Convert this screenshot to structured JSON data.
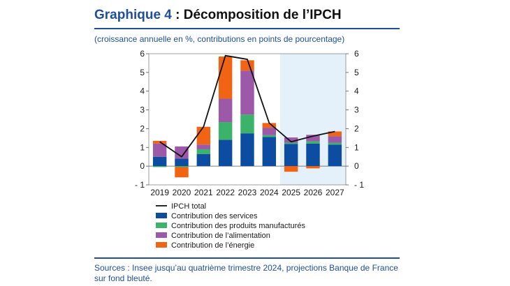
{
  "header": {
    "title_number": "Graphique 4",
    "title_text": " : Décomposition de l’IPCH",
    "subtitle": "(croissance annuelle en %, contributions en points de pourcentage)"
  },
  "footer": {
    "sources": "Sources : Insee jusqu’au quatrième trimestre 2024, projections Banque de France sur fond bleuté."
  },
  "colors": {
    "services": "#0c4da2",
    "manufactures": "#3cb36b",
    "alimentation": "#9b59a7",
    "energie": "#f06414",
    "line": "#111111",
    "projection_bg": "#e4f0fa",
    "accent": "#1f4e9c"
  },
  "chart_data": {
    "type": "bar",
    "stacked": true,
    "categories": [
      "2019",
      "2020",
      "2021",
      "2022",
      "2023",
      "2024",
      "2025",
      "2026",
      "2027"
    ],
    "projection_from": "2025",
    "ylim": [
      -1,
      6
    ],
    "yticks": [
      "6",
      "5",
      "4",
      "3",
      "2",
      "1",
      "0",
      "- 1"
    ],
    "series": [
      {
        "name": "Contribution des services",
        "key": "services",
        "values": [
          0.5,
          0.4,
          0.65,
          1.4,
          1.75,
          1.55,
          1.18,
          1.2,
          1.15
        ]
      },
      {
        "name": "Contribution des produits manufacturés",
        "key": "manufactures",
        "values": [
          -0.05,
          -0.05,
          0.25,
          0.95,
          1.0,
          0.1,
          0.07,
          0.12,
          0.1
        ]
      },
      {
        "name": "Contribution de l’alimentation",
        "key": "alimentation",
        "values": [
          0.7,
          0.65,
          0.25,
          1.25,
          2.35,
          0.4,
          0.28,
          0.35,
          0.35
        ]
      },
      {
        "name": "Contribution de l’énergie",
        "key": "energie",
        "values": [
          0.15,
          -0.55,
          0.95,
          2.25,
          0.55,
          0.25,
          -0.3,
          -0.12,
          0.25
        ]
      }
    ],
    "line": {
      "name": "IPCH total",
      "values": [
        1.3,
        0.5,
        2.1,
        5.9,
        5.7,
        2.3,
        1.3,
        1.6,
        1.85
      ]
    },
    "legend_position": "bottom",
    "grid": false
  }
}
